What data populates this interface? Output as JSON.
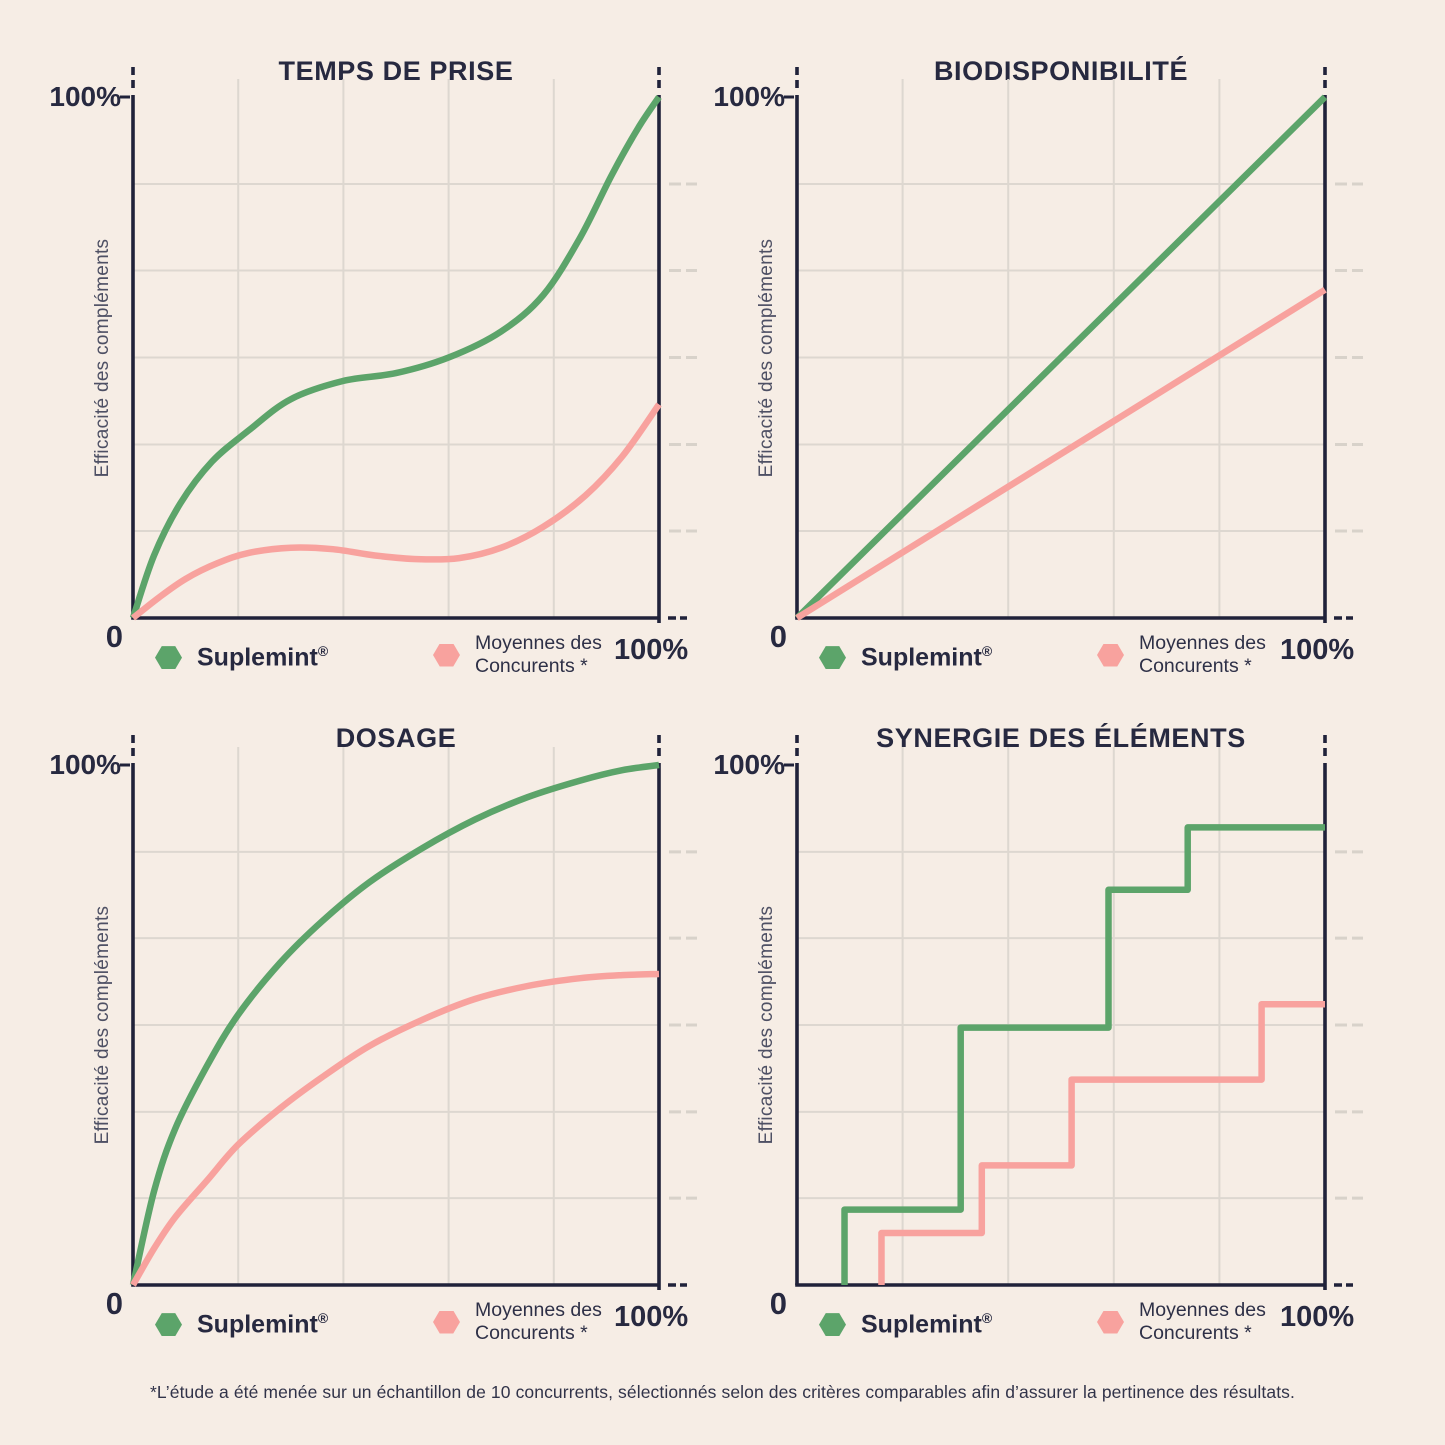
{
  "page": {
    "footnote": "*L’étude a été menée sur un échantillon de 10 concurrents, sélectionnés selon des critères comparables afin d’assurer la pertinence des résultats."
  },
  "colors": {
    "page_bg": "#f6ede5",
    "ink": "#272940",
    "axis": "#20223a",
    "grid": "#ddd7d0",
    "grid_dash": "#d8d2ca",
    "suplemint_green": "#5ca46a",
    "competitor_pink": "#f8a29e"
  },
  "axes": {
    "ylabel": "Efficacité des compléments",
    "y_max_label": "100%",
    "origin_label": "0",
    "x_max_label": "100%"
  },
  "legend": {
    "suplemint": "Suplemint",
    "suplemint_mark": "®",
    "competitors": "Moyennes des Concurents *"
  },
  "chart_data": [
    {
      "type": "line",
      "curve": "smooth",
      "title": "TEMPS DE PRISE",
      "xlabel": "",
      "ylabel": "Efficacité des compléments",
      "x_range": [
        0,
        100
      ],
      "y_range": [
        0,
        100
      ],
      "unit": "%",
      "grid": {
        "vertical_lines_x": [
          20,
          40,
          60,
          80
        ],
        "horizontal_lines_y": [
          16.7,
          33.3,
          50,
          66.7,
          83.3
        ]
      },
      "series": [
        {
          "name": "Suplemint®",
          "color_key": "suplemint_green",
          "points": [
            [
              0,
              0
            ],
            [
              4,
              12
            ],
            [
              9,
              22
            ],
            [
              15,
              30
            ],
            [
              22,
              36
            ],
            [
              30,
              42
            ],
            [
              40,
              45.5
            ],
            [
              50,
              47
            ],
            [
              60,
              50
            ],
            [
              70,
              55
            ],
            [
              78,
              62
            ],
            [
              85,
              73
            ],
            [
              91,
              85
            ],
            [
              96,
              94
            ],
            [
              100,
              100
            ]
          ]
        },
        {
          "name": "Moyennes des Concurents *",
          "color_key": "competitor_pink",
          "points": [
            [
              0,
              0
            ],
            [
              5,
              4
            ],
            [
              10,
              7.5
            ],
            [
              16,
              10.5
            ],
            [
              22,
              12.5
            ],
            [
              30,
              13.5
            ],
            [
              38,
              13.2
            ],
            [
              46,
              12
            ],
            [
              54,
              11.3
            ],
            [
              62,
              11.5
            ],
            [
              70,
              13.5
            ],
            [
              78,
              17.5
            ],
            [
              86,
              23.5
            ],
            [
              93,
              31
            ],
            [
              100,
              41
            ]
          ]
        }
      ]
    },
    {
      "type": "line",
      "curve": "linear",
      "title": "BIODISPONIBILITÉ",
      "xlabel": "",
      "ylabel": "Efficacité des compléments",
      "x_range": [
        0,
        100
      ],
      "y_range": [
        0,
        100
      ],
      "unit": "%",
      "grid": {
        "vertical_lines_x": [
          20,
          40,
          60,
          80
        ],
        "horizontal_lines_y": [
          16.7,
          33.3,
          50,
          66.7,
          83.3
        ]
      },
      "series": [
        {
          "name": "Suplemint®",
          "color_key": "suplemint_green",
          "points": [
            [
              0,
              0
            ],
            [
              100,
              100
            ]
          ]
        },
        {
          "name": "Moyennes des Concurents *",
          "color_key": "competitor_pink",
          "points": [
            [
              0,
              0
            ],
            [
              100,
              63
            ]
          ]
        }
      ]
    },
    {
      "type": "line",
      "curve": "smooth",
      "title": "DOSAGE",
      "xlabel": "",
      "ylabel": "Efficacité des compléments",
      "x_range": [
        0,
        100
      ],
      "y_range": [
        0,
        100
      ],
      "unit": "%",
      "grid": {
        "vertical_lines_x": [
          20,
          40,
          60,
          80
        ],
        "horizontal_lines_y": [
          16.7,
          33.3,
          50,
          66.7,
          83.3
        ]
      },
      "series": [
        {
          "name": "Suplemint®",
          "color_key": "suplemint_green",
          "points": [
            [
              0,
              0
            ],
            [
              4,
              18
            ],
            [
              8,
              30
            ],
            [
              14,
              42
            ],
            [
              20,
              52
            ],
            [
              28,
              62
            ],
            [
              36,
              70
            ],
            [
              45,
              77.5
            ],
            [
              55,
              84
            ],
            [
              65,
              89.5
            ],
            [
              75,
              93.8
            ],
            [
              85,
              97
            ],
            [
              93,
              99
            ],
            [
              100,
              100
            ]
          ]
        },
        {
          "name": "Moyennes des Concurents *",
          "color_key": "competitor_pink",
          "points": [
            [
              0,
              0
            ],
            [
              4,
              7
            ],
            [
              8,
              13
            ],
            [
              14,
              20
            ],
            [
              20,
              27
            ],
            [
              28,
              34
            ],
            [
              36,
              40
            ],
            [
              45,
              46
            ],
            [
              55,
              51
            ],
            [
              65,
              55
            ],
            [
              75,
              57.5
            ],
            [
              85,
              59
            ],
            [
              93,
              59.6
            ],
            [
              100,
              59.8
            ]
          ]
        }
      ]
    },
    {
      "type": "line",
      "curve": "step",
      "title": "SYNERGIE DES ÉLÉMENTS",
      "xlabel": "",
      "ylabel": "Efficacité des compléments",
      "x_range": [
        0,
        100
      ],
      "y_range": [
        0,
        100
      ],
      "unit": "%",
      "grid": {
        "vertical_lines_x": [
          20,
          40,
          60,
          80
        ],
        "horizontal_lines_y": [
          16.7,
          33.3,
          50,
          66.7,
          83.3
        ]
      },
      "series": [
        {
          "name": "Suplemint®",
          "color_key": "suplemint_green",
          "steps": [
            [
              9,
              14.5
            ],
            [
              31,
              49.5
            ],
            [
              59,
              76
            ],
            [
              74,
              88
            ]
          ]
        },
        {
          "name": "Moyennes des Concurents *",
          "color_key": "competitor_pink",
          "steps": [
            [
              16,
              10
            ],
            [
              35,
              23
            ],
            [
              52,
              39.5
            ],
            [
              88,
              54
            ]
          ]
        }
      ]
    }
  ]
}
